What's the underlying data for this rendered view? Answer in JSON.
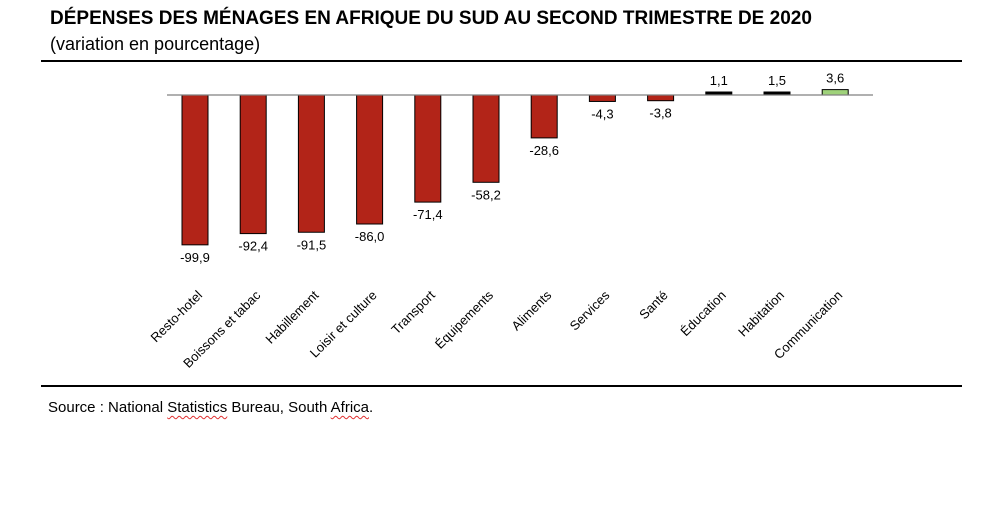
{
  "title": "DÉPENSES DES MÉNAGES EN AFRIQUE DU SUD AU SECOND TRIMESTRE DE 2020",
  "subtitle": "(variation en pourcentage)",
  "source": {
    "prefix": "Source :  National ",
    "word1": "Statistics",
    "middle": " Bureau, South ",
    "word2": "Africa",
    "suffix": "."
  },
  "colors": {
    "negative": "#b22418",
    "positive": "#9fd27a",
    "near_zero": "#000000",
    "axis": "#808080"
  },
  "chart_data": {
    "type": "bar",
    "title": "DÉPENSES DES MÉNAGES EN AFRIQUE DU SUD AU SECOND TRIMESTRE DE 2020",
    "subtitle": "(variation en pourcentage)",
    "categories": [
      "Resto-hotel",
      "Boissons et tabac",
      "Habillement",
      "Loisir et culture",
      "Transport",
      "Équipements",
      "Aliments",
      "Services",
      "Santé",
      "Éducation",
      "Habitation",
      "Communication"
    ],
    "values": [
      -99.9,
      -92.4,
      -91.5,
      -86.0,
      -71.4,
      -58.2,
      -28.6,
      -4.3,
      -3.8,
      1.1,
      1.5,
      3.6
    ],
    "labels": [
      "-99,9",
      "-92,4",
      "-91,5",
      "-86,0",
      "-71,4",
      "-58,2",
      "-28,6",
      "-4,3",
      "-3,8",
      "1,1",
      "1,5",
      "3,6"
    ],
    "xlabel": "",
    "ylabel": "",
    "ylim": [
      -100,
      4
    ],
    "grid": false,
    "legend": "none"
  }
}
